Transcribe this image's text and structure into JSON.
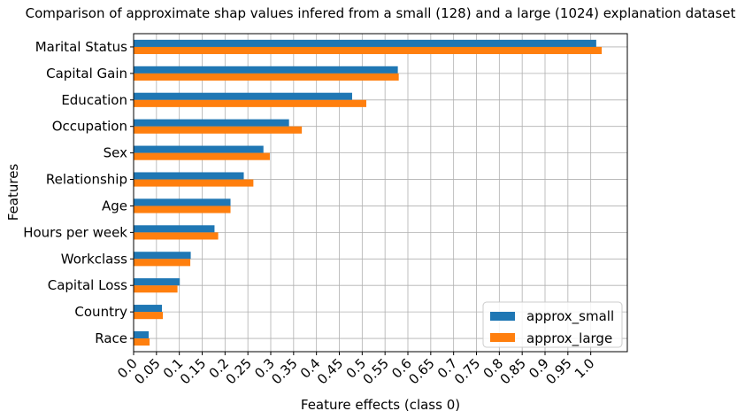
{
  "chart_data": {
    "type": "bar",
    "orientation": "horizontal",
    "title": "Comparison of approximate shap values infered from a small (128) and a large (1024) explanation dataset",
    "xlabel": "Feature effects (class 0)",
    "ylabel": "Features",
    "categories": [
      "Marital Status",
      "Capital Gain",
      "Education",
      "Occupation",
      "Sex",
      "Relationship",
      "Age",
      "Hours per week",
      "Workclass",
      "Capital Loss",
      "Country",
      "Race"
    ],
    "series": [
      {
        "name": "approx_small",
        "color": "#1f77b4",
        "values": [
          1.012,
          0.578,
          0.478,
          0.34,
          0.284,
          0.241,
          0.212,
          0.177,
          0.125,
          0.101,
          0.062,
          0.033
        ]
      },
      {
        "name": "approx_large",
        "color": "#ff7f0e",
        "values": [
          1.024,
          0.58,
          0.509,
          0.368,
          0.298,
          0.262,
          0.212,
          0.185,
          0.124,
          0.096,
          0.064,
          0.035
        ]
      }
    ],
    "xlim": [
      0,
      1.08
    ],
    "xticks": [
      "0.0",
      "0.05",
      "0.1",
      "0.15",
      "0.2",
      "0.25",
      "0.3",
      "0.35",
      "0.4",
      "0.45",
      "0.5",
      "0.55",
      "0.6",
      "0.65",
      "0.7",
      "0.75",
      "0.8",
      "0.85",
      "0.9",
      "0.95",
      "1.0"
    ],
    "grid": true,
    "legend_position": "bottom-right"
  }
}
